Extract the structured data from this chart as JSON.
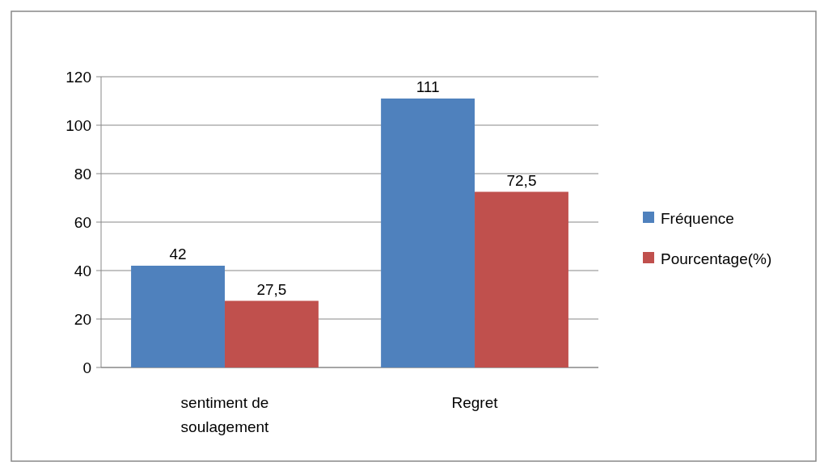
{
  "chart_data": {
    "type": "bar",
    "categories": [
      "sentiment de soulagement",
      "Regret"
    ],
    "series": [
      {
        "name": "Fréquence",
        "color": "#4f81bd",
        "values": [
          42,
          111
        ],
        "value_labels": [
          "42",
          "111"
        ]
      },
      {
        "name": "Pourcentage(%)",
        "color": "#c0504d",
        "values": [
          27.5,
          72.5
        ],
        "value_labels": [
          "27,5",
          "72,5"
        ]
      }
    ],
    "ylim": [
      0,
      120
    ],
    "yticks": [
      0,
      20,
      40,
      60,
      80,
      100,
      120
    ],
    "grid": "y",
    "legend": "right"
  }
}
